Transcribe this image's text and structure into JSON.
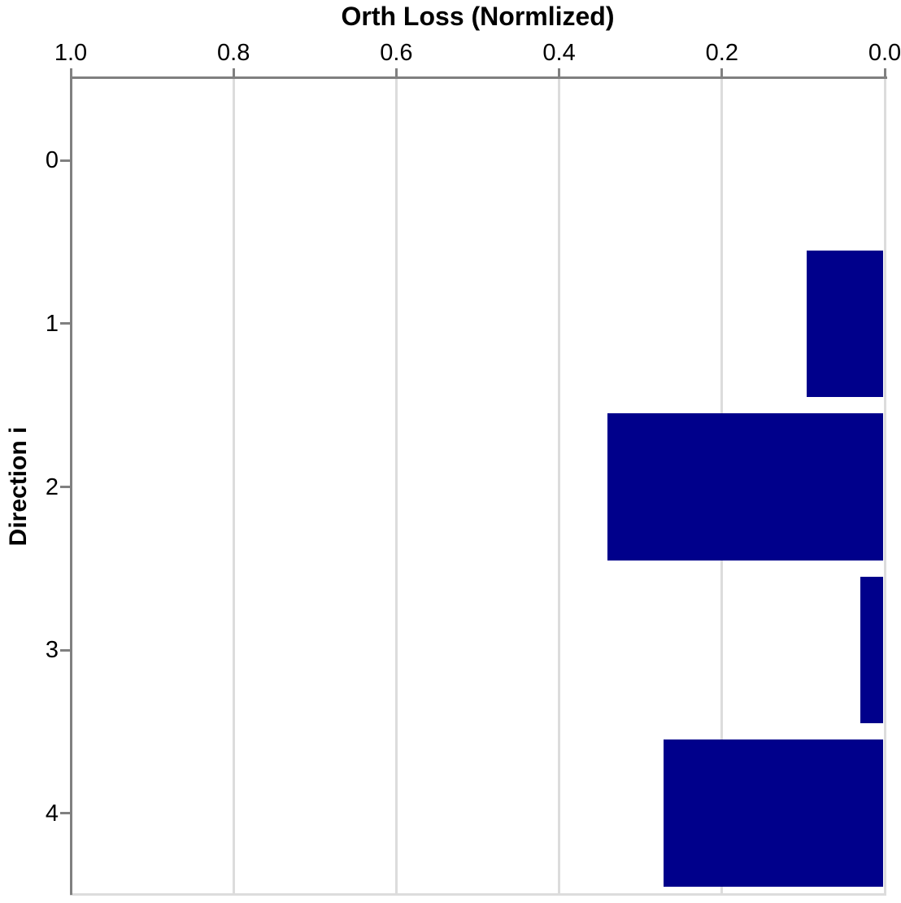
{
  "chart_data": {
    "type": "bar",
    "orientation": "horizontal",
    "title": "Orth Loss (Normlized)",
    "xlabel": "Orth Loss (Normlized)",
    "ylabel": "Direction i",
    "categories": [
      "0",
      "1",
      "2",
      "3",
      "4"
    ],
    "values": [
      0.0,
      0.096,
      0.341,
      0.03,
      0.272
    ],
    "xlim": [
      1.0,
      0.0
    ],
    "x_axis_position": "top",
    "x_tick_labels": [
      "1.0",
      "0.8",
      "0.6",
      "0.4",
      "0.2",
      "0.0"
    ],
    "x_tick_values": [
      1.0,
      0.8,
      0.6,
      0.4,
      0.2,
      0.0
    ],
    "grid": true,
    "legend": false,
    "bar_height_fraction": 0.9
  },
  "style": {
    "bar_color": "#00008B",
    "spine_color": "#808080",
    "grid_color": "#DCDCDC",
    "bottom_edge_color": "#DCDCDC",
    "text_color": "#000000",
    "background_color": "#FFFFFF"
  }
}
